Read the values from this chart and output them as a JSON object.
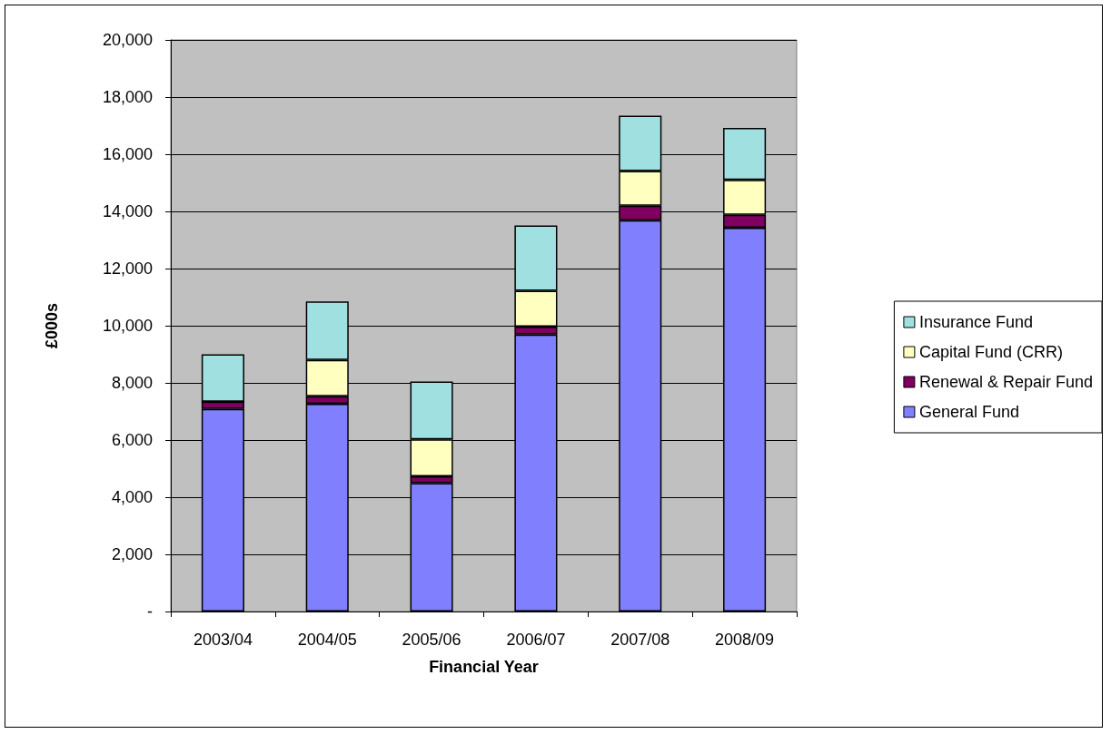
{
  "chart_data": {
    "type": "bar",
    "stacked": true,
    "xlabel": "Financial Year",
    "ylabel": "£000s",
    "categories": [
      "2003/04",
      "2004/05",
      "2005/06",
      "2006/07",
      "2007/08",
      "2008/09"
    ],
    "series": [
      {
        "name": "General Fund",
        "color": "#8080ff",
        "values": [
          7090,
          7270,
          4490,
          9690,
          13690,
          13430
        ]
      },
      {
        "name": "Renewal & Repair Fund",
        "color": "#800060",
        "values": [
          250,
          260,
          240,
          280,
          510,
          450
        ]
      },
      {
        "name": "Capital Fund (CRR)",
        "color": "#ffffc0",
        "values": [
          0,
          1270,
          1290,
          1250,
          1210,
          1220
        ]
      },
      {
        "name": "Insurance Fund",
        "color": "#a0e0e0",
        "values": [
          1660,
          2050,
          2030,
          2290,
          1940,
          1820
        ]
      }
    ],
    "ylim": [
      0,
      20000
    ],
    "yticks": [
      {
        "value": 0,
        "label": "-"
      },
      {
        "value": 2000,
        "label": "2,000"
      },
      {
        "value": 4000,
        "label": "4,000"
      },
      {
        "value": 6000,
        "label": "6,000"
      },
      {
        "value": 8000,
        "label": "8,000"
      },
      {
        "value": 10000,
        "label": "10,000"
      },
      {
        "value": 12000,
        "label": "12,000"
      },
      {
        "value": 14000,
        "label": "14,000"
      },
      {
        "value": 16000,
        "label": "16,000"
      },
      {
        "value": 18000,
        "label": "18,000"
      },
      {
        "value": 20000,
        "label": "20,000"
      }
    ],
    "grid": "y",
    "legend": "right"
  }
}
